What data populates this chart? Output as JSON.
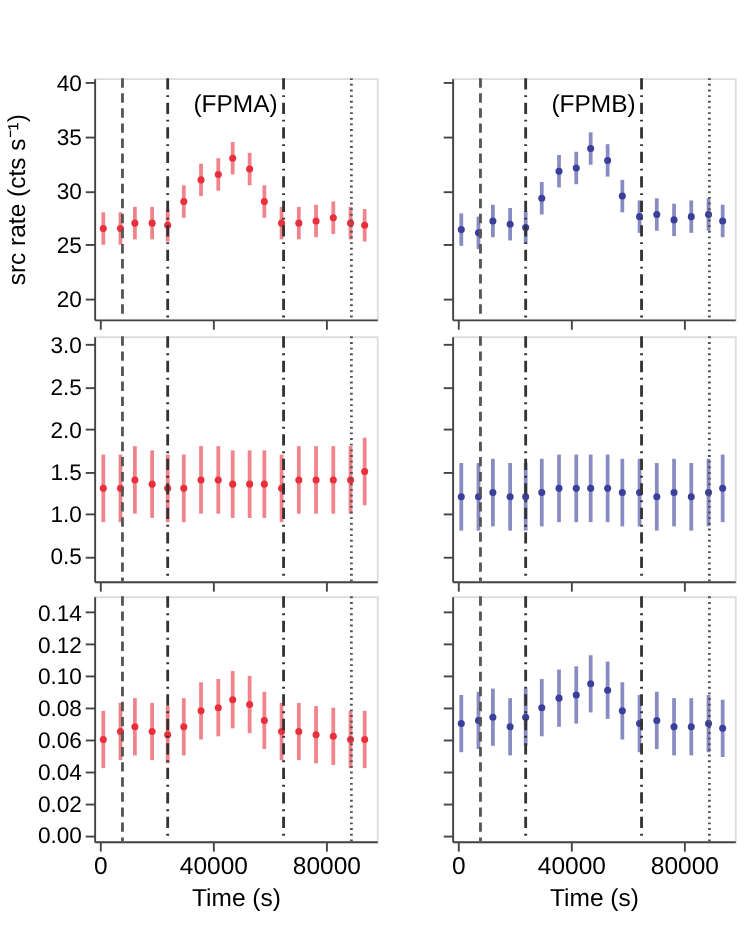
{
  "chart_data": [
    {
      "type": "scatter",
      "ylabel": "src rate (cts s⁻¹)",
      "annotations": [
        "(FPMA)"
      ],
      "x": [
        1220,
        7300,
        12400,
        18500,
        24000,
        29700,
        35800,
        41900,
        47000,
        53000,
        58200,
        64300,
        70400,
        76500,
        82600,
        88700,
        93700
      ],
      "series": [
        {
          "color": "#e8303c",
          "values": [
            26.5,
            26.5,
            27,
            27,
            26.8,
            29,
            31,
            31.5,
            33,
            32,
            29,
            27,
            27,
            27.2,
            27.5,
            27,
            26.8
          ],
          "errors": [
            1.5,
            1.5,
            1.5,
            1.5,
            1.5,
            1.5,
            1.5,
            1.5,
            1.5,
            1.5,
            1.5,
            1.5,
            1.5,
            1.5,
            1.5,
            1.5,
            1.5
          ]
        }
      ],
      "xlim": [
        -2000,
        98000
      ],
      "xticks": [
        0,
        40000,
        80000
      ],
      "ylim": [
        18.1,
        40.4
      ],
      "yticks": [
        20,
        25,
        30,
        35,
        40
      ],
      "tick_labels": "y",
      "marker": "circle",
      "grid": false,
      "ref_lines": [
        {
          "axis": "x",
          "value": 8000,
          "line_style": "dashed",
          "color": "#555555"
        },
        {
          "axis": "x",
          "value": 24000,
          "line_style": "dashdot",
          "color": "#333333"
        },
        {
          "axis": "x",
          "value": 65000,
          "line_style": "dashdot",
          "color": "#333333"
        },
        {
          "axis": "x",
          "value": 89000,
          "line_style": "dotted",
          "color": "#555555"
        }
      ]
    },
    {
      "type": "scatter",
      "annotations": [
        "(FPMB)"
      ],
      "x": [
        1220,
        7300,
        12400,
        18500,
        24000,
        29700,
        35800,
        41900,
        47000,
        53000,
        58200,
        64300,
        70400,
        76500,
        82600,
        88700,
        93700
      ],
      "series": [
        {
          "color": "#3a3f9a",
          "values": [
            26.4,
            26.1,
            27.2,
            26.9,
            26.6,
            29.3,
            31.8,
            32.1,
            33.9,
            32.8,
            29.5,
            27.6,
            27.8,
            27.3,
            27.6,
            27.8,
            27.2
          ],
          "errors": [
            1.5,
            1.5,
            1.5,
            1.5,
            1.5,
            1.5,
            1.5,
            1.5,
            1.5,
            1.5,
            1.5,
            1.5,
            1.5,
            1.5,
            1.5,
            1.5,
            1.5
          ]
        }
      ],
      "xlim": [
        -2000,
        98000
      ],
      "xticks": [
        0,
        40000,
        80000
      ],
      "ylim": [
        18.1,
        40.4
      ],
      "yticks": [
        20,
        25,
        30,
        35,
        40
      ],
      "tick_labels": false,
      "marker": "circle",
      "grid": false,
      "ref_lines": [
        {
          "axis": "x",
          "value": 8000,
          "line_style": "dashed",
          "color": "#555555"
        },
        {
          "axis": "x",
          "value": 24000,
          "line_style": "dashdot",
          "color": "#333333"
        },
        {
          "axis": "x",
          "value": 65000,
          "line_style": "dashdot",
          "color": "#333333"
        },
        {
          "axis": "x",
          "value": 89000,
          "line_style": "dotted",
          "color": "#555555"
        }
      ]
    },
    {
      "type": "scatter",
      "x": [
        1220,
        7300,
        12400,
        18500,
        24000,
        29700,
        35800,
        41900,
        47000,
        53000,
        58200,
        64300,
        70400,
        76500,
        82600,
        88700,
        93700
      ],
      "series": [
        {
          "color": "#e8303c",
          "values": [
            1.3,
            1.3,
            1.4,
            1.35,
            1.3,
            1.3,
            1.4,
            1.4,
            1.35,
            1.35,
            1.35,
            1.3,
            1.4,
            1.4,
            1.4,
            1.4,
            1.5
          ],
          "errors": [
            0.4,
            0.4,
            0.4,
            0.4,
            0.4,
            0.4,
            0.4,
            0.4,
            0.4,
            0.4,
            0.4,
            0.4,
            0.4,
            0.4,
            0.4,
            0.4,
            0.4
          ]
        }
      ],
      "xlim": [
        -2000,
        98000
      ],
      "xticks": [
        0,
        40000,
        80000
      ],
      "ylim": [
        0.2,
        3.1
      ],
      "yticks": [
        {
          "value": 0.5,
          "label": "0.5"
        },
        {
          "value": 1,
          "label": "1.0"
        },
        {
          "value": 1.5,
          "label": "1.5"
        },
        {
          "value": 2,
          "label": "2.0"
        },
        {
          "value": 2.5,
          "label": "2.5"
        },
        {
          "value": 3,
          "label": "3.0"
        }
      ],
      "tick_labels": "y",
      "marker": "circle",
      "grid": false,
      "ref_lines": [
        {
          "axis": "x",
          "value": 8000,
          "line_style": "dashed",
          "color": "#555555"
        },
        {
          "axis": "x",
          "value": 24000,
          "line_style": "dashdot",
          "color": "#333333"
        },
        {
          "axis": "x",
          "value": 65000,
          "line_style": "dashdot",
          "color": "#333333"
        },
        {
          "axis": "x",
          "value": 89000,
          "line_style": "dotted",
          "color": "#555555"
        }
      ]
    },
    {
      "type": "scatter",
      "x": [
        1220,
        7300,
        12400,
        18500,
        24000,
        29700,
        35800,
        41900,
        47000,
        53000,
        58200,
        64300,
        70400,
        76500,
        82600,
        88700,
        93700
      ],
      "series": [
        {
          "color": "#3a3f9a",
          "values": [
            1.2,
            1.2,
            1.25,
            1.2,
            1.2,
            1.25,
            1.3,
            1.3,
            1.3,
            1.3,
            1.25,
            1.25,
            1.2,
            1.25,
            1.2,
            1.25,
            1.3
          ],
          "errors": [
            0.4,
            0.4,
            0.4,
            0.4,
            0.4,
            0.4,
            0.4,
            0.4,
            0.4,
            0.4,
            0.4,
            0.4,
            0.4,
            0.4,
            0.4,
            0.4,
            0.4
          ]
        }
      ],
      "xlim": [
        -2000,
        98000
      ],
      "xticks": [
        0,
        40000,
        80000
      ],
      "ylim": [
        0.2,
        3.1
      ],
      "yticks": [
        0.5,
        1,
        1.5,
        2,
        2.5,
        3
      ],
      "tick_labels": false,
      "marker": "circle",
      "grid": false,
      "ref_lines": [
        {
          "axis": "x",
          "value": 8000,
          "line_style": "dashed",
          "color": "#555555"
        },
        {
          "axis": "x",
          "value": 24000,
          "line_style": "dashdot",
          "color": "#333333"
        },
        {
          "axis": "x",
          "value": 65000,
          "line_style": "dashdot",
          "color": "#333333"
        },
        {
          "axis": "x",
          "value": 89000,
          "line_style": "dotted",
          "color": "#555555"
        }
      ]
    },
    {
      "type": "scatter",
      "xlabel": "Time (s)",
      "x": [
        1220,
        7300,
        12400,
        18500,
        24000,
        29700,
        35800,
        41900,
        47000,
        53000,
        58200,
        64300,
        70400,
        76500,
        82600,
        88700,
        93700
      ],
      "series": [
        {
          "color": "#e8303c",
          "values": [
            0.06,
            0.065,
            0.068,
            0.065,
            0.063,
            0.068,
            0.078,
            0.08,
            0.085,
            0.082,
            0.072,
            0.065,
            0.065,
            0.063,
            0.062,
            0.06,
            0.06
          ],
          "errors": [
            0.018,
            0.018,
            0.018,
            0.018,
            0.018,
            0.018,
            0.018,
            0.018,
            0.018,
            0.018,
            0.018,
            0.018,
            0.018,
            0.018,
            0.018,
            0.018,
            0.018
          ]
        }
      ],
      "xlim": [
        -2000,
        98000
      ],
      "xticks": [
        0,
        40000,
        80000
      ],
      "ylim": [
        -0.004,
        0.15
      ],
      "yticks": [
        {
          "value": 0,
          "label": "0.00"
        },
        {
          "value": 0.02,
          "label": "0.02"
        },
        {
          "value": 0.04,
          "label": "0.04"
        },
        {
          "value": 0.06,
          "label": "0.06"
        },
        {
          "value": 0.08,
          "label": "0.08"
        },
        {
          "value": 0.1,
          "label": "0.10"
        },
        {
          "value": 0.12,
          "label": "0.12"
        },
        {
          "value": 0.14,
          "label": "0.14"
        }
      ],
      "marker": "circle",
      "grid": false,
      "ref_lines": [
        {
          "axis": "x",
          "value": 8000,
          "line_style": "dashed",
          "color": "#555555"
        },
        {
          "axis": "x",
          "value": 24000,
          "line_style": "dashdot",
          "color": "#333333"
        },
        {
          "axis": "x",
          "value": 65000,
          "line_style": "dashdot",
          "color": "#333333"
        },
        {
          "axis": "x",
          "value": 89000,
          "line_style": "dotted",
          "color": "#555555"
        }
      ]
    },
    {
      "type": "scatter",
      "xlabel": "Time (s)",
      "x": [
        1220,
        7300,
        12400,
        18500,
        24000,
        29700,
        35800,
        41900,
        47000,
        53000,
        58200,
        64300,
        70400,
        76500,
        82600,
        88700,
        93700
      ],
      "series": [
        {
          "color": "#3a3f9a",
          "values": [
            0.07,
            0.072,
            0.074,
            0.068,
            0.074,
            0.08,
            0.086,
            0.088,
            0.095,
            0.091,
            0.078,
            0.07,
            0.072,
            0.068,
            0.068,
            0.07,
            0.067
          ],
          "errors": [
            0.018,
            0.018,
            0.018,
            0.018,
            0.018,
            0.018,
            0.018,
            0.018,
            0.018,
            0.018,
            0.018,
            0.018,
            0.018,
            0.018,
            0.018,
            0.018,
            0.018
          ]
        }
      ],
      "xlim": [
        -2000,
        98000
      ],
      "xticks": [
        0,
        40000,
        80000
      ],
      "ylim": [
        -0.004,
        0.15
      ],
      "yticks": [
        0,
        0.02,
        0.04,
        0.06,
        0.08,
        0.1,
        0.12,
        0.14
      ],
      "tick_labels": "x",
      "marker": "circle",
      "grid": false,
      "ref_lines": [
        {
          "axis": "x",
          "value": 8000,
          "line_style": "dashed",
          "color": "#555555"
        },
        {
          "axis": "x",
          "value": 24000,
          "line_style": "dashdot",
          "color": "#333333"
        },
        {
          "axis": "x",
          "value": 65000,
          "line_style": "dashdot",
          "color": "#333333"
        },
        {
          "axis": "x",
          "value": 89000,
          "line_style": "dotted",
          "color": "#555555"
        }
      ]
    }
  ]
}
